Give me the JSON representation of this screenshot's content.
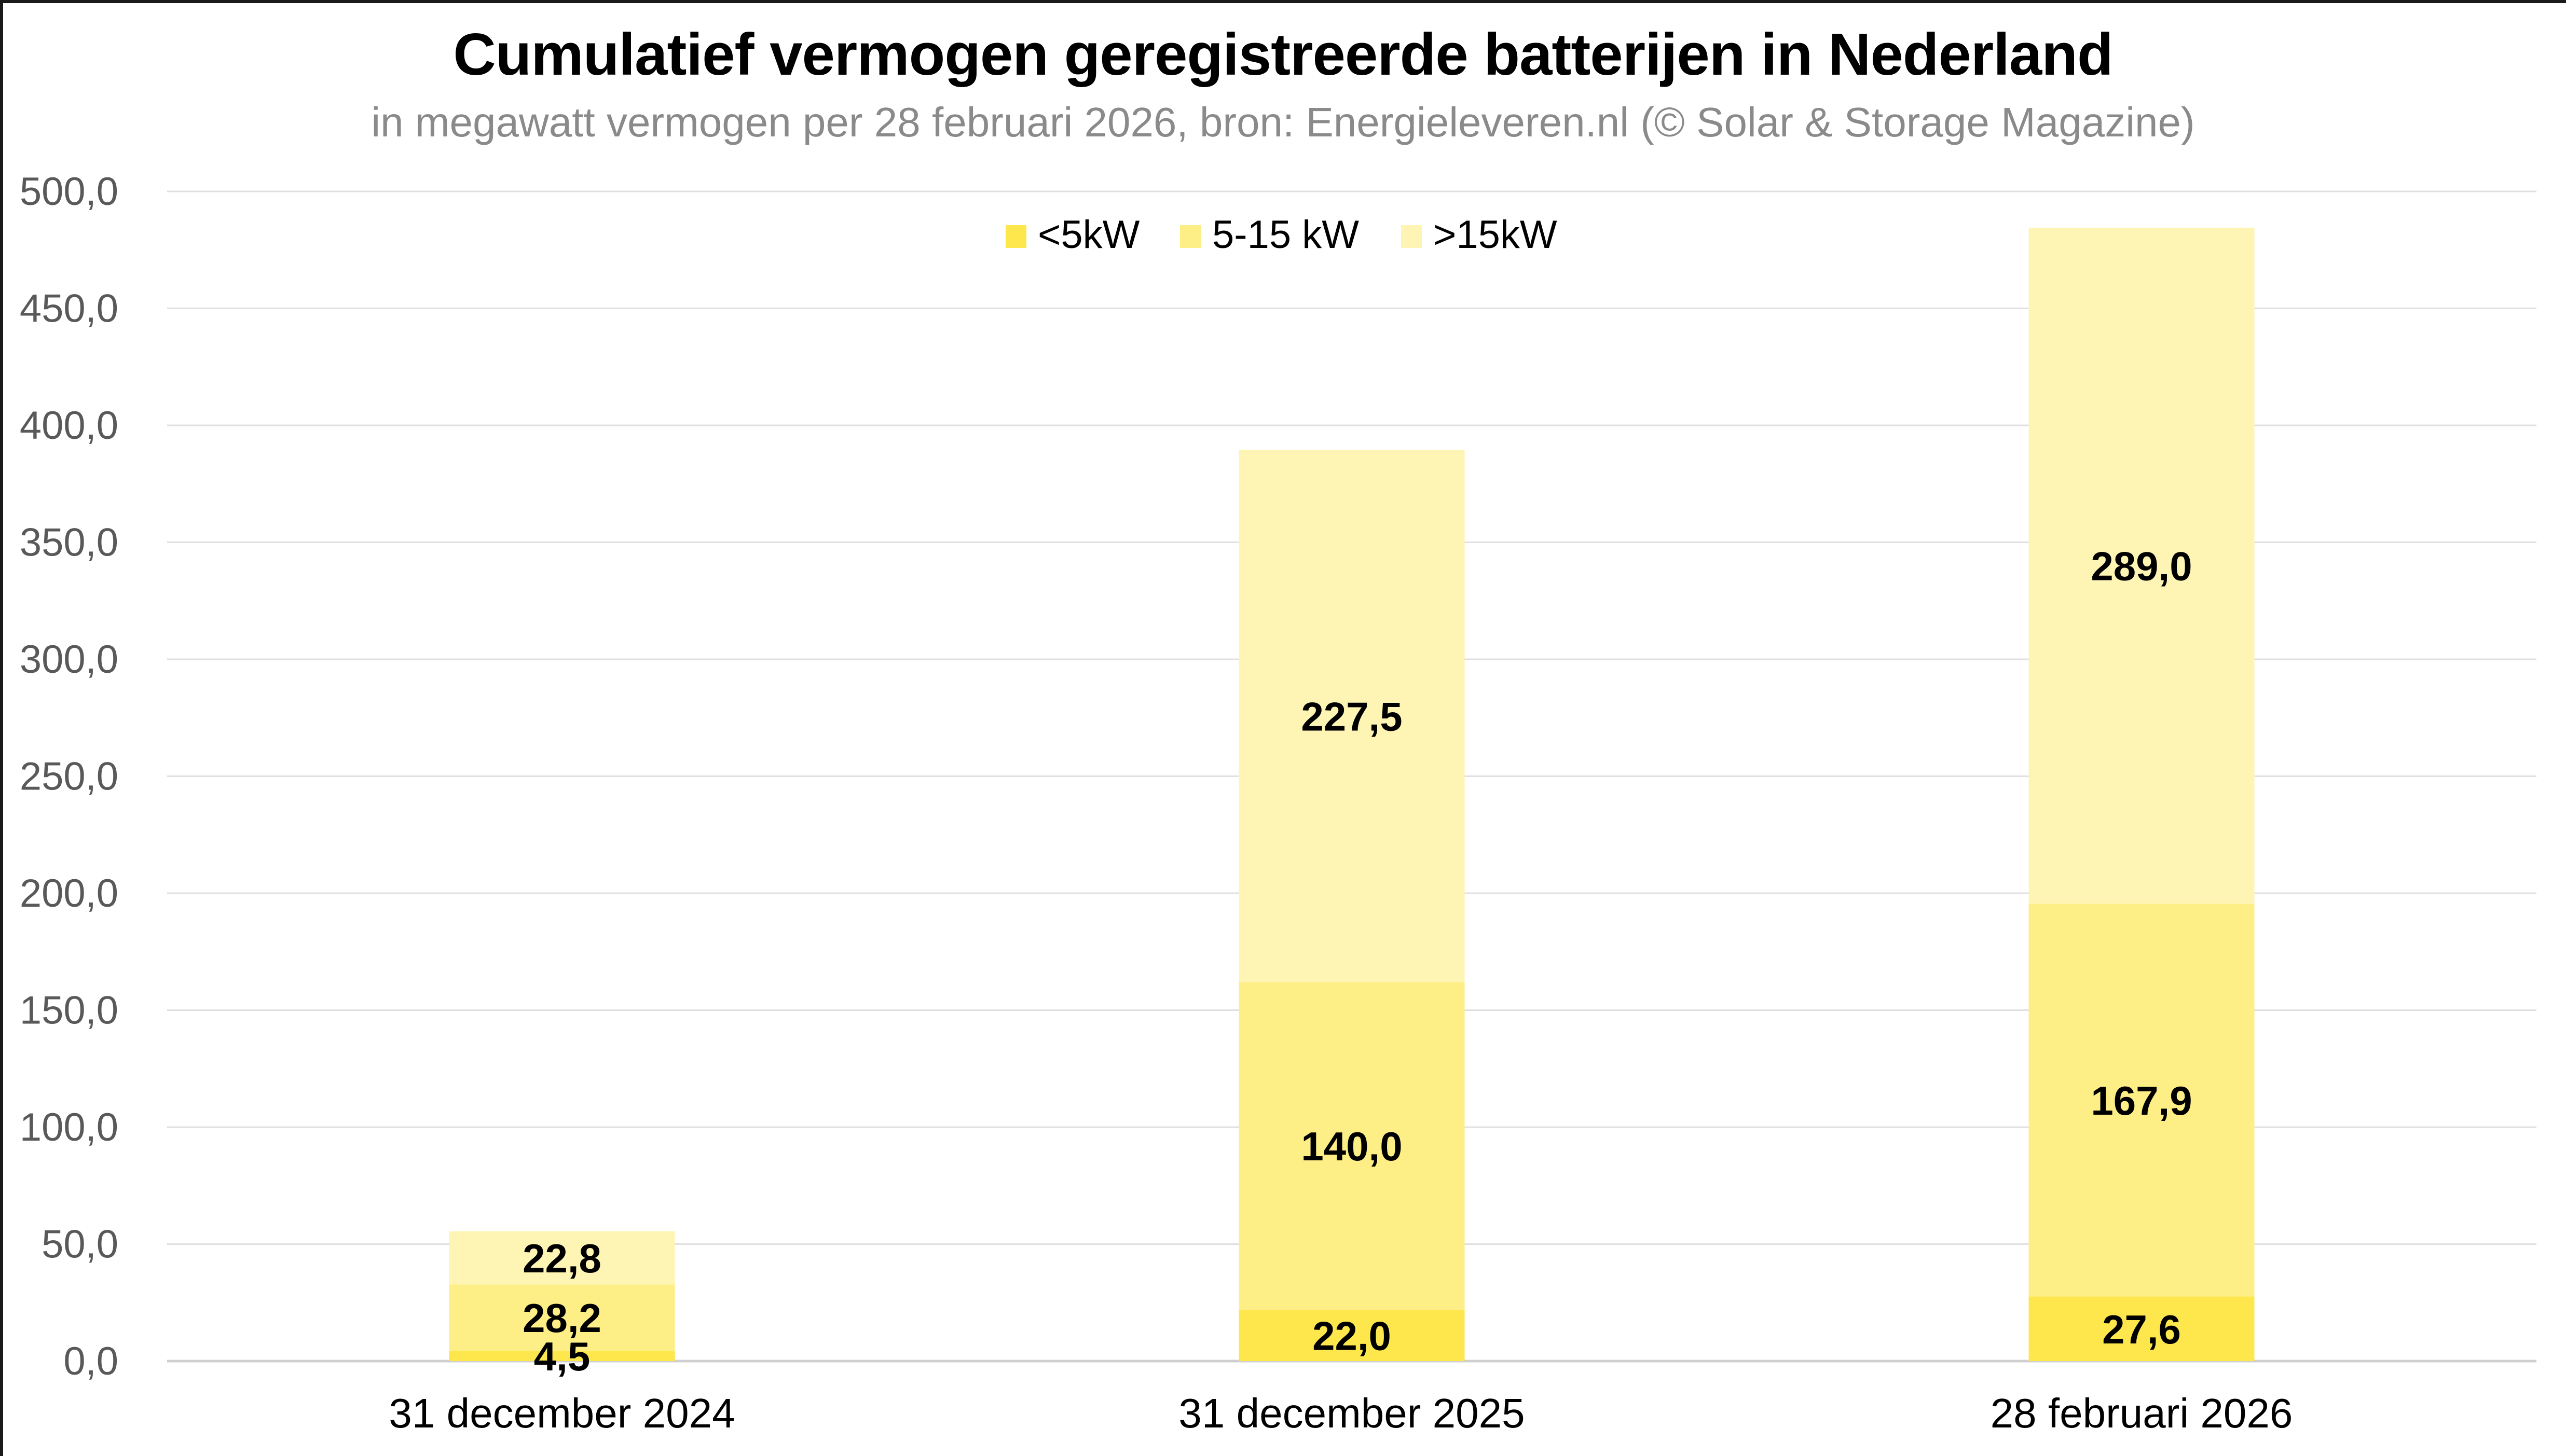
{
  "chart_data": {
    "type": "bar",
    "stacked": true,
    "title": "Cumulatief vermogen geregistreerde batterijen in Nederland",
    "subtitle": "in megawatt vermogen per 28 februari 2026, bron: Energieleveren.nl (© Solar & Storage Magazine)",
    "xlabel": "",
    "ylabel": "",
    "ylim": [
      0,
      500
    ],
    "yticks": [
      0,
      50,
      100,
      150,
      200,
      250,
      300,
      350,
      400,
      450,
      500
    ],
    "ytick_labels": [
      "0,0",
      "50,0",
      "100,0",
      "150,0",
      "200,0",
      "250,0",
      "300,0",
      "350,0",
      "400,0",
      "450,0",
      "500,0"
    ],
    "grid": true,
    "legend_position": "top-center",
    "categories": [
      "31 december 2024",
      "31 december 2025",
      "28 februari 2026"
    ],
    "series": [
      {
        "name": "<5kW",
        "color": "#fde74c",
        "values": [
          4.5,
          22.0,
          27.6
        ],
        "labels": [
          "4,5",
          "22,0",
          "27,6"
        ]
      },
      {
        "name": "5-15 kW",
        "color": "#fdee85",
        "values": [
          28.2,
          140.0,
          167.9
        ],
        "labels": [
          "28,2",
          "140,0",
          "167,9"
        ]
      },
      {
        "name": ">15kW",
        "color": "#fef5b5",
        "values": [
          22.8,
          227.5,
          289.0
        ],
        "labels": [
          "22,8",
          "227,5",
          "289,0"
        ]
      }
    ]
  }
}
